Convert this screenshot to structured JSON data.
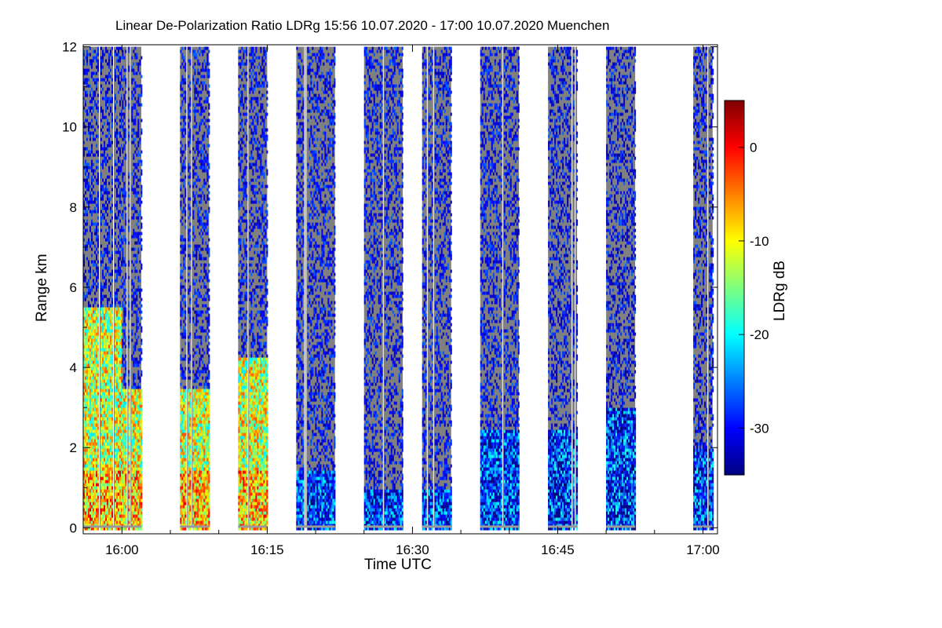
{
  "chart_data": {
    "type": "heatmap",
    "title": "Linear De-Polarization Ratio LDRg   15:56 10.07.2020 - 17:00 10.07.2020 Muenchen",
    "xlabel": "Time UTC",
    "ylabel": "Range km",
    "x_tick_labels": [
      "16:00",
      "16:15",
      "16:30",
      "16:45",
      "17:00"
    ],
    "x_tick_minutes": [
      960,
      975,
      990,
      1005,
      1020
    ],
    "xlim_minutes": [
      956,
      1021.5
    ],
    "y_tick_labels": [
      "0",
      "2",
      "4",
      "6",
      "8",
      "10",
      "12"
    ],
    "y_tick_values": [
      0,
      2,
      4,
      6,
      8,
      10,
      12
    ],
    "ylim_km": [
      -0.15,
      12.05
    ],
    "colorbar": {
      "label": "LDRg dB",
      "tick_labels": [
        "0",
        "-10",
        "-20",
        "-30"
      ],
      "tick_values": [
        0,
        -10,
        -20,
        -30
      ],
      "range_db": [
        -35,
        5
      ],
      "colors": [
        "#00007f",
        "#0000ff",
        "#007fff",
        "#00ffff",
        "#7fff7f",
        "#ffff00",
        "#ff7f00",
        "#ff0000",
        "#7f0000"
      ]
    },
    "background_color": "#808080",
    "data_segments_utc": [
      {
        "start": "15:56",
        "end": "16:00",
        "low_ldr_top_km": 5.5,
        "signal_top_km": 12.0
      },
      {
        "start": "16:00",
        "end": "16:02",
        "low_ldr_top_km": 3.5,
        "signal_top_km": 12.0
      },
      {
        "start": "16:06",
        "end": "16:09",
        "low_ldr_top_km": 3.5,
        "signal_top_km": 12.0
      },
      {
        "start": "16:12",
        "end": "16:15",
        "low_ldr_top_km": 4.3,
        "signal_top_km": 12.0
      },
      {
        "start": "16:18",
        "end": "16:22",
        "low_ldr_top_km": 1.5,
        "signal_top_km": 12.0
      },
      {
        "start": "16:25",
        "end": "16:29",
        "low_ldr_top_km": 1.0,
        "signal_top_km": 12.0
      },
      {
        "start": "16:31",
        "end": "16:34",
        "low_ldr_top_km": 1.0,
        "signal_top_km": 12.0
      },
      {
        "start": "16:37",
        "end": "16:41",
        "low_ldr_top_km": 2.5,
        "signal_top_km": 12.0
      },
      {
        "start": "16:44",
        "end": "16:47",
        "low_ldr_top_km": 2.5,
        "signal_top_km": 12.0
      },
      {
        "start": "16:50",
        "end": "16:53",
        "low_ldr_top_km": 3.0,
        "signal_top_km": 12.0
      },
      {
        "start": "16:59",
        "end": "17:01",
        "low_ldr_top_km": 2.0,
        "signal_top_km": 12.0
      }
    ],
    "grid": false,
    "legend": "colorbar-right"
  }
}
